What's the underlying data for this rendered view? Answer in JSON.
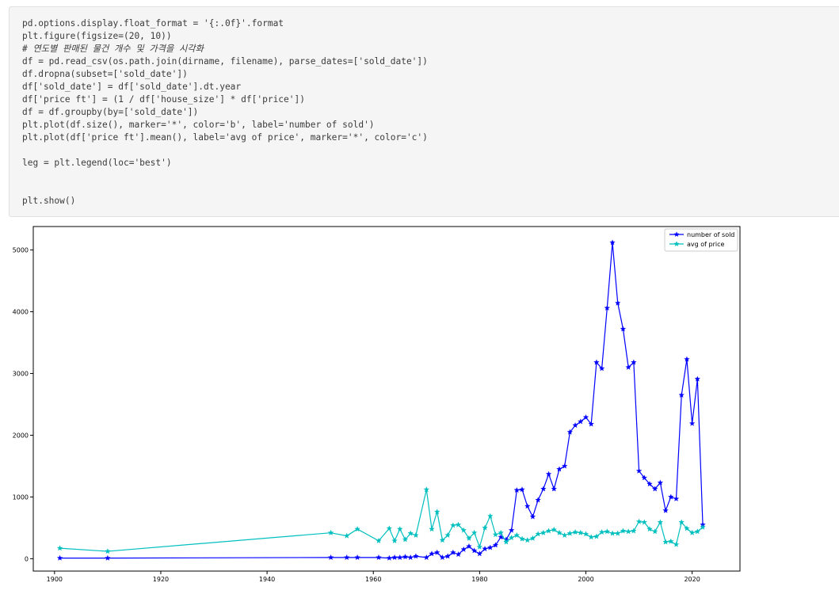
{
  "code_cell": {
    "lines": [
      "pd.options.display.float_format = '{:.0f}'.format",
      "plt.figure(figsize=(20, 10))",
      "# 연도별 판매된 물건 개수 및 가격을 시각화",
      "df = pd.read_csv(os.path.join(dirname, filename), parse_dates=['sold_date'])",
      "df.dropna(subset=['sold_date'])",
      "df['sold_date'] = df['sold_date'].dt.year",
      "df['price ft'] = (1 / df['house_size'] * df['price'])",
      "df = df.groupby(by=['sold_date'])",
      "plt.plot(df.size(), marker='*', color='b', label='number of sold')",
      "plt.plot(df['price ft'].mean(), label='avg of price', marker='*', color='c')",
      "",
      "leg = plt.legend(loc='best')",
      "",
      "",
      "plt.show()"
    ]
  },
  "chart_data": {
    "type": "line",
    "title": "",
    "xlabel": "",
    "ylabel": "",
    "xlim": [
      1896,
      2029
    ],
    "ylim": [
      -200,
      5380
    ],
    "x_ticks": [
      "1900",
      "1920",
      "1940",
      "1960",
      "1980",
      "2000",
      "2020"
    ],
    "y_ticks": [
      "0",
      "1000",
      "2000",
      "3000",
      "4000",
      "5000"
    ],
    "grid": false,
    "legend": "top-right",
    "marker": "*",
    "series": [
      {
        "name": "number of sold",
        "color": "#0000ff",
        "x": [
          1901,
          1910,
          1952,
          1955,
          1957,
          1961,
          1963,
          1964,
          1965,
          1966,
          1967,
          1968,
          1970,
          1971,
          1972,
          1973,
          1974,
          1975,
          1976,
          1977,
          1978,
          1979,
          1980,
          1981,
          1982,
          1983,
          1984,
          1985,
          1986,
          1987,
          1988,
          1989,
          1990,
          1991,
          1992,
          1993,
          1994,
          1995,
          1996,
          1997,
          1998,
          1999,
          2000,
          2001,
          2002,
          2003,
          2004,
          2005,
          2006,
          2007,
          2008,
          2009,
          2010,
          2011,
          2012,
          2013,
          2014,
          2015,
          2016,
          2017,
          2018,
          2019,
          2020,
          2021,
          2022
        ],
        "y": [
          10,
          10,
          20,
          20,
          20,
          20,
          10,
          20,
          20,
          30,
          20,
          40,
          20,
          80,
          100,
          20,
          40,
          100,
          70,
          150,
          200,
          130,
          80,
          160,
          180,
          220,
          350,
          310,
          460,
          1110,
          1120,
          850,
          680,
          950,
          1130,
          1370,
          1130,
          1450,
          1500,
          2050,
          2160,
          2220,
          2290,
          2180,
          3180,
          3080,
          4060,
          5120,
          4140,
          3720,
          3100,
          3180,
          1420,
          1310,
          1210,
          1130,
          1230,
          780,
          1000,
          970,
          2650,
          3230,
          2190,
          2910,
          550
        ]
      },
      {
        "name": "avg of price",
        "color": "#00bfbf",
        "x": [
          1901,
          1910,
          1952,
          1955,
          1957,
          1961,
          1963,
          1964,
          1965,
          1966,
          1967,
          1968,
          1970,
          1971,
          1972,
          1973,
          1974,
          1975,
          1976,
          1977,
          1978,
          1979,
          1980,
          1981,
          1982,
          1983,
          1984,
          1985,
          1986,
          1987,
          1988,
          1989,
          1990,
          1991,
          1992,
          1993,
          1994,
          1995,
          1996,
          1997,
          1998,
          1999,
          2000,
          2001,
          2002,
          2003,
          2004,
          2005,
          2006,
          2007,
          2008,
          2009,
          2010,
          2011,
          2012,
          2013,
          2014,
          2015,
          2016,
          2017,
          2018,
          2019,
          2020,
          2021,
          2022
        ],
        "y": [
          170,
          120,
          420,
          370,
          480,
          290,
          490,
          290,
          480,
          310,
          410,
          380,
          1120,
          480,
          760,
          300,
          380,
          540,
          550,
          460,
          330,
          420,
          190,
          500,
          690,
          390,
          420,
          270,
          340,
          380,
          320,
          300,
          330,
          400,
          420,
          450,
          470,
          420,
          380,
          410,
          430,
          420,
          400,
          350,
          360,
          430,
          440,
          410,
          410,
          450,
          440,
          450,
          600,
          590,
          480,
          440,
          590,
          270,
          280,
          230,
          590,
          490,
          420,
          440,
          510
        ]
      }
    ]
  }
}
